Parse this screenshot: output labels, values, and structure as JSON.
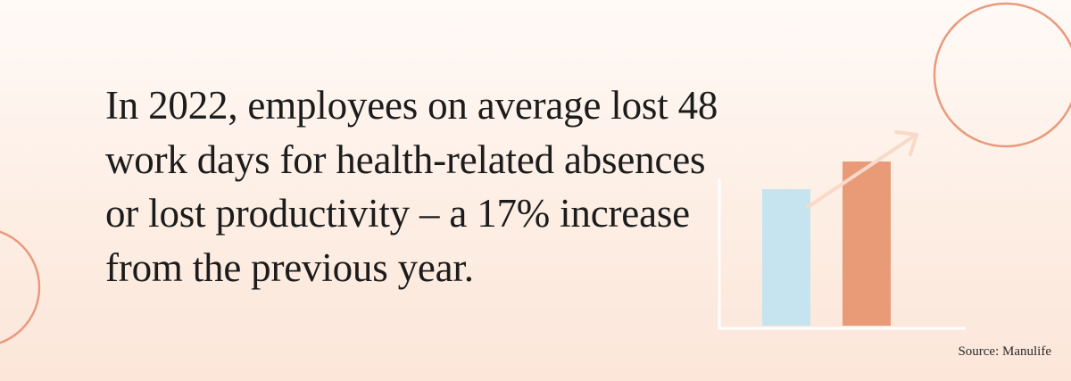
{
  "headline": {
    "lines": [
      "In 2022, employees on average lost 48",
      "work days for health-related absences",
      "or lost productivity – a 17% increase",
      "from the previous year."
    ]
  },
  "source": "Source: Manulife"
}
